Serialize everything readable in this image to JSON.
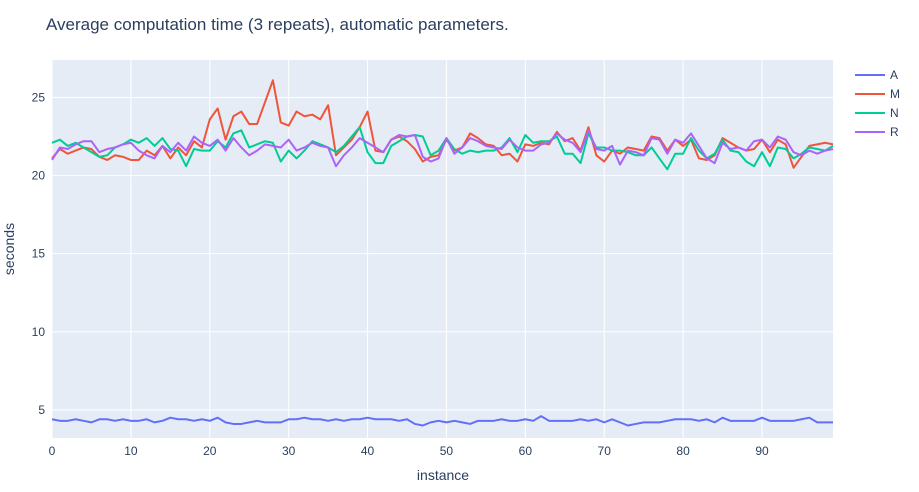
{
  "chart_data": {
    "type": "line",
    "title": "Average computation time (3 repeats), automatic parameters.",
    "xlabel": "instance",
    "ylabel": "seconds",
    "xlim": [
      0,
      99
    ],
    "ylim": [
      3.2,
      27.4
    ],
    "xticks": [
      0,
      10,
      20,
      30,
      40,
      50,
      60,
      70,
      80,
      90
    ],
    "yticks": [
      5,
      10,
      15,
      20,
      25
    ],
    "grid": true,
    "legend_position": "top-right",
    "colors": {
      "A": "#636efa",
      "M": "#ef553b",
      "N": "#00cc96",
      "R": "#ab63fa"
    },
    "x": [
      0,
      1,
      2,
      3,
      4,
      5,
      6,
      7,
      8,
      9,
      10,
      11,
      12,
      13,
      14,
      15,
      16,
      17,
      18,
      19,
      20,
      21,
      22,
      23,
      24,
      25,
      26,
      27,
      28,
      29,
      30,
      31,
      32,
      33,
      34,
      35,
      36,
      37,
      38,
      39,
      40,
      41,
      42,
      43,
      44,
      45,
      46,
      47,
      48,
      49,
      50,
      51,
      52,
      53,
      54,
      55,
      56,
      57,
      58,
      59,
      60,
      61,
      62,
      63,
      64,
      65,
      66,
      67,
      68,
      69,
      70,
      71,
      72,
      73,
      74,
      75,
      76,
      77,
      78,
      79,
      80,
      81,
      82,
      83,
      84,
      85,
      86,
      87,
      88,
      89,
      90,
      91,
      92,
      93,
      94,
      95,
      96,
      97,
      98,
      99
    ],
    "series": [
      {
        "name": "A",
        "values": [
          4.4,
          4.3,
          4.3,
          4.4,
          4.3,
          4.2,
          4.4,
          4.4,
          4.3,
          4.4,
          4.3,
          4.3,
          4.4,
          4.2,
          4.3,
          4.5,
          4.4,
          4.4,
          4.3,
          4.4,
          4.3,
          4.5,
          4.2,
          4.1,
          4.1,
          4.2,
          4.3,
          4.2,
          4.2,
          4.2,
          4.4,
          4.4,
          4.5,
          4.4,
          4.4,
          4.3,
          4.4,
          4.3,
          4.4,
          4.4,
          4.5,
          4.4,
          4.4,
          4.4,
          4.3,
          4.4,
          4.1,
          4.0,
          4.2,
          4.3,
          4.2,
          4.3,
          4.2,
          4.1,
          4.3,
          4.3,
          4.3,
          4.4,
          4.3,
          4.3,
          4.4,
          4.3,
          4.6,
          4.3,
          4.3,
          4.3,
          4.3,
          4.4,
          4.3,
          4.4,
          4.2,
          4.4,
          4.2,
          4.0,
          4.1,
          4.2,
          4.2,
          4.2,
          4.3,
          4.4,
          4.4,
          4.4,
          4.3,
          4.4,
          4.2,
          4.5,
          4.3,
          4.3,
          4.3,
          4.3,
          4.5,
          4.3,
          4.3,
          4.3,
          4.3,
          4.4,
          4.5,
          4.2,
          4.2,
          4.2
        ]
      },
      {
        "name": "M",
        "values": [
          21.1,
          21.7,
          21.4,
          21.6,
          21.8,
          21.7,
          21.2,
          21.0,
          21.3,
          21.2,
          21.0,
          21.0,
          21.6,
          21.3,
          21.9,
          21.1,
          21.8,
          21.3,
          22.2,
          21.8,
          23.6,
          24.3,
          22.3,
          23.8,
          24.1,
          23.3,
          23.3,
          24.7,
          26.1,
          23.4,
          23.2,
          24.1,
          23.8,
          23.9,
          23.6,
          24.5,
          21.3,
          21.8,
          22.3,
          23.1,
          24.1,
          21.6,
          21.5,
          22.3,
          22.5,
          22.2,
          21.7,
          20.9,
          21.2,
          21.3,
          22.3,
          21.6,
          21.8,
          22.7,
          22.4,
          22.0,
          21.9,
          21.3,
          21.4,
          20.9,
          22.0,
          21.9,
          22.1,
          22.0,
          22.8,
          22.2,
          22.4,
          21.6,
          23.1,
          21.3,
          20.9,
          21.6,
          21.4,
          21.8,
          21.7,
          21.6,
          22.5,
          22.4,
          21.6,
          22.3,
          21.9,
          22.3,
          21.1,
          21.0,
          21.3,
          22.4,
          22.1,
          21.8,
          21.6,
          21.7,
          22.3,
          21.5,
          22.3,
          22.0,
          20.5,
          21.2,
          21.9,
          22.0,
          22.1,
          22.0
        ]
      },
      {
        "name": "N",
        "values": [
          22.1,
          22.3,
          21.9,
          22.1,
          21.8,
          21.5,
          21.2,
          21.3,
          21.8,
          22.0,
          22.3,
          22.1,
          22.4,
          21.9,
          22.4,
          21.7,
          21.6,
          20.6,
          21.7,
          21.6,
          21.6,
          22.2,
          21.8,
          22.7,
          22.9,
          21.8,
          22.0,
          22.2,
          22.1,
          20.9,
          21.6,
          21.1,
          21.6,
          22.2,
          22.0,
          21.8,
          21.5,
          21.9,
          22.5,
          23.1,
          21.5,
          20.8,
          20.8,
          21.9,
          22.2,
          22.5,
          22.6,
          22.5,
          21.3,
          21.6,
          22.4,
          21.7,
          21.4,
          21.6,
          21.5,
          21.6,
          21.6,
          21.8,
          22.4,
          21.5,
          22.6,
          22.1,
          22.2,
          22.2,
          22.5,
          21.4,
          21.4,
          20.8,
          22.7,
          21.8,
          21.8,
          21.6,
          21.6,
          21.5,
          21.3,
          21.3,
          21.8,
          21.1,
          20.4,
          21.4,
          21.4,
          22.4,
          21.6,
          21.1,
          21.4,
          22.3,
          21.6,
          21.5,
          20.9,
          20.6,
          21.5,
          20.6,
          21.8,
          21.7,
          21.1,
          21.4,
          21.8,
          21.7,
          21.6,
          21.9
        ]
      },
      {
        "name": "R",
        "values": [
          21.0,
          21.8,
          21.7,
          22.0,
          22.2,
          22.2,
          21.5,
          21.7,
          21.8,
          22.0,
          22.1,
          21.6,
          21.3,
          21.1,
          21.9,
          21.5,
          22.1,
          21.6,
          22.5,
          22.1,
          21.9,
          22.3,
          21.6,
          22.4,
          21.8,
          21.3,
          21.6,
          22.0,
          21.9,
          21.8,
          22.3,
          21.6,
          21.8,
          22.1,
          21.9,
          21.8,
          20.6,
          21.3,
          21.8,
          22.4,
          22.1,
          21.8,
          21.5,
          22.3,
          22.6,
          22.5,
          22.6,
          21.2,
          20.9,
          21.1,
          22.4,
          21.4,
          21.8,
          22.4,
          22.2,
          21.9,
          21.8,
          21.7,
          22.3,
          21.8,
          21.6,
          21.6,
          22.0,
          22.1,
          22.7,
          22.3,
          22.1,
          21.5,
          22.9,
          21.7,
          21.6,
          21.9,
          20.7,
          21.6,
          21.5,
          21.3,
          22.4,
          22.3,
          21.4,
          22.3,
          22.1,
          22.7,
          21.9,
          21.1,
          20.8,
          22.1,
          21.7,
          21.8,
          21.6,
          22.2,
          22.3,
          21.8,
          22.5,
          22.3,
          21.5,
          21.3,
          21.6,
          21.4,
          21.6,
          21.7
        ]
      }
    ]
  }
}
